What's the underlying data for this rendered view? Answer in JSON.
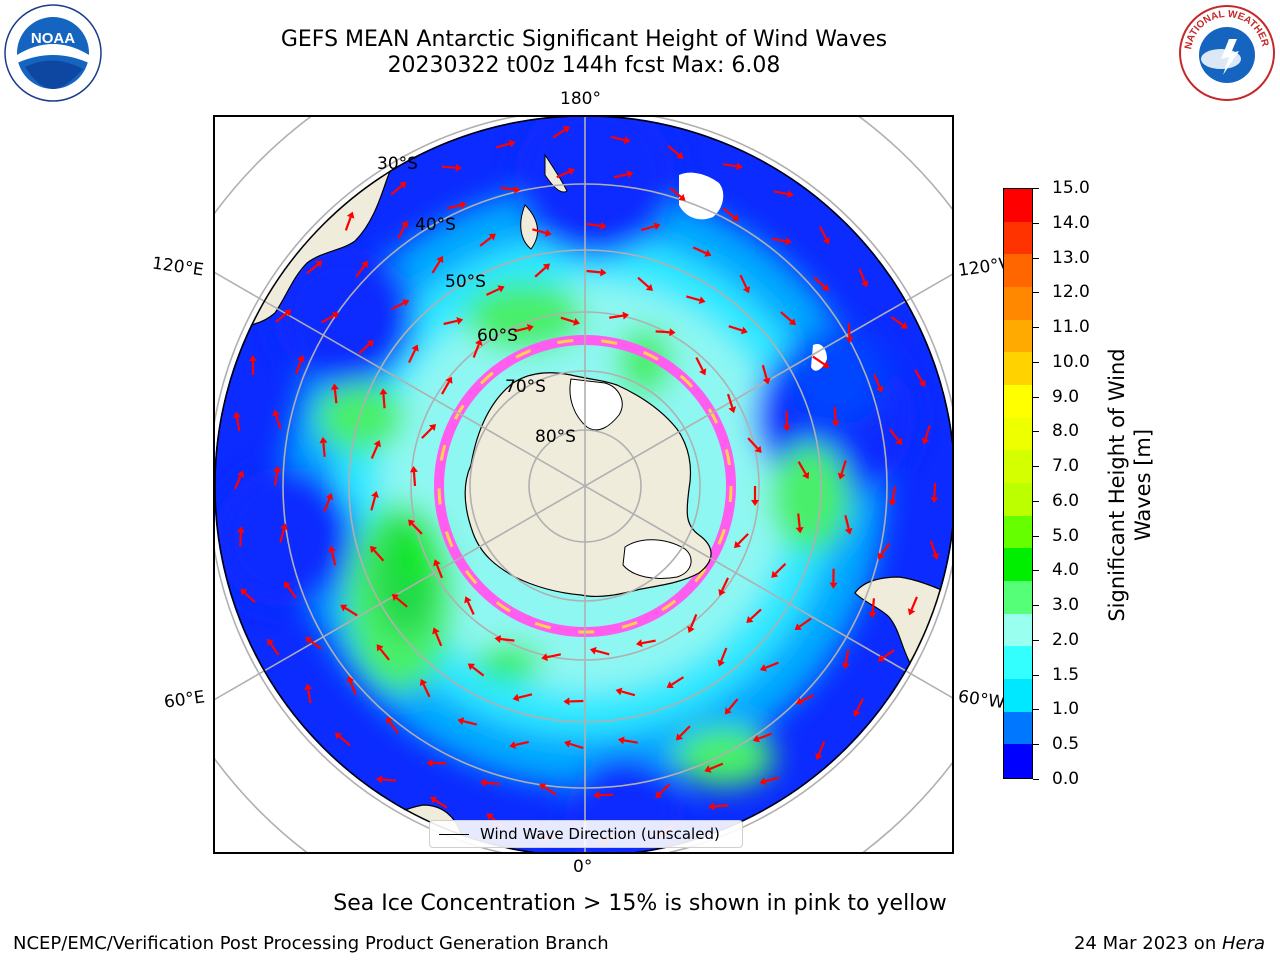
{
  "title": {
    "line1": "GEFS MEAN Antarctic Significant Height of Wind Waves",
    "line2": "20230322 t00z 144h fcst   Max: 6.08"
  },
  "logos": {
    "left": {
      "text": "NOAA",
      "ring_text": "NATIONAL OCEANIC AND ATMOSPHERIC ADMINISTRATION · U.S. DEPARTMENT OF COMMERCE",
      "icon": "noaa-logo",
      "color": "#1565c0"
    },
    "right": {
      "text": "NATIONAL WEATHER SERVICE",
      "icon": "nws-logo",
      "color": "#1565c0",
      "accent": "#d32f2f"
    }
  },
  "map": {
    "projection": "south-polar-stereographic",
    "longitude_labels": {
      "top": "180°",
      "bottom": "0°",
      "upper_left": "120°E",
      "upper_right": "120°W",
      "lower_left": "60°E",
      "lower_right": "60°W"
    },
    "latitude_labels": [
      "30°S",
      "40°S",
      "50°S",
      "60°S",
      "70°S",
      "80°S"
    ],
    "land_color": "#efecdc",
    "grid_color": "#b0b0b0",
    "arrow_color": "#ff0000",
    "legend": {
      "label": "Wind Wave Direction (unscaled)"
    }
  },
  "colorbar": {
    "label": "Significant Height of Wind Waves [m]",
    "label_line1": "Significant Height of Wind",
    "label_line2": "Waves [m]",
    "ticks": [
      "15.0",
      "14.0",
      "13.0",
      "12.0",
      "11.0",
      "10.0",
      "9.0",
      "8.0",
      "7.0",
      "6.0",
      "5.0",
      "4.0",
      "3.0",
      "2.0",
      "1.5",
      "1.0",
      "0.5",
      "0.0"
    ],
    "colors_top_to_bottom": [
      "#ff0000",
      "#ff3300",
      "#ff6600",
      "#ff8800",
      "#ffaa00",
      "#ffd200",
      "#ffff00",
      "#eeff00",
      "#d4ff00",
      "#bbff00",
      "#66ff00",
      "#00ee00",
      "#55ff77",
      "#99ffee",
      "#33ffff",
      "#00e8ff",
      "#0077ff",
      "#0000ff"
    ]
  },
  "sea_ice_note": "Sea Ice Concentration > 15% is shown in pink to yellow",
  "footer": {
    "left": "NCEP/EMC/Verification Post Processing Product Generation Branch",
    "right_date": "24 Mar 2023 on ",
    "right_host": "Hera"
  }
}
